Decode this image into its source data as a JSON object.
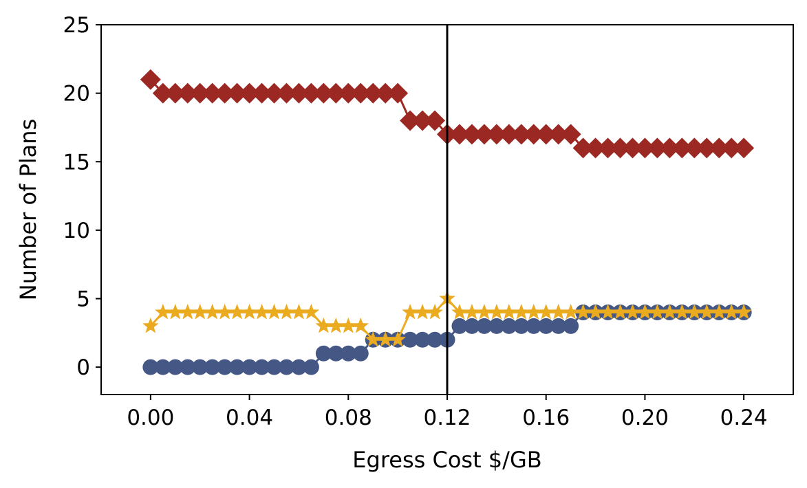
{
  "chart_data": {
    "type": "line",
    "xlabel": "Egress Cost $/GB",
    "ylabel": "Number of Plans",
    "xlim": [
      -0.02,
      0.26
    ],
    "ylim": [
      -2,
      25
    ],
    "xticks": [
      0.0,
      0.04,
      0.08,
      0.12,
      0.16,
      0.2,
      0.24
    ],
    "xtick_labels": [
      "0.00",
      "0.04",
      "0.08",
      "0.12",
      "0.16",
      "0.20",
      "0.24"
    ],
    "yticks": [
      0,
      5,
      10,
      15,
      20,
      25
    ],
    "ytick_labels": [
      "0",
      "5",
      "10",
      "15",
      "20",
      "25"
    ],
    "grid": false,
    "legend": "none",
    "vline_x": 0.12,
    "x": [
      0.0,
      0.005,
      0.01,
      0.015,
      0.02,
      0.025,
      0.03,
      0.035,
      0.04,
      0.045,
      0.05,
      0.055,
      0.06,
      0.065,
      0.07,
      0.075,
      0.08,
      0.085,
      0.09,
      0.095,
      0.1,
      0.105,
      0.11,
      0.115,
      0.12,
      0.125,
      0.13,
      0.135,
      0.14,
      0.145,
      0.15,
      0.155,
      0.16,
      0.165,
      0.17,
      0.175,
      0.18,
      0.185,
      0.19,
      0.195,
      0.2,
      0.205,
      0.21,
      0.215,
      0.22,
      0.225,
      0.23,
      0.235,
      0.24
    ],
    "series": [
      {
        "marker": "diamond",
        "color": "#9b2823",
        "values": [
          21,
          20,
          20,
          20,
          20,
          20,
          20,
          20,
          20,
          20,
          20,
          20,
          20,
          20,
          20,
          20,
          20,
          20,
          20,
          20,
          20,
          18,
          18,
          18,
          17,
          17,
          17,
          17,
          17,
          17,
          17,
          17,
          17,
          17,
          17,
          16,
          16,
          16,
          16,
          16,
          16,
          16,
          16,
          16,
          16,
          16,
          16,
          16,
          16
        ]
      },
      {
        "marker": "circle",
        "color": "#455885",
        "values": [
          0,
          0,
          0,
          0,
          0,
          0,
          0,
          0,
          0,
          0,
          0,
          0,
          0,
          0,
          1,
          1,
          1,
          1,
          2,
          2,
          2,
          2,
          2,
          2,
          2,
          3,
          3,
          3,
          3,
          3,
          3,
          3,
          3,
          3,
          3,
          4,
          4,
          4,
          4,
          4,
          4,
          4,
          4,
          4,
          4,
          4,
          4,
          4,
          4
        ]
      },
      {
        "marker": "star",
        "color": "#ebab21",
        "values": [
          3,
          4,
          4,
          4,
          4,
          4,
          4,
          4,
          4,
          4,
          4,
          4,
          4,
          4,
          3,
          3,
          3,
          3,
          2,
          2,
          2,
          4,
          4,
          4,
          5,
          4,
          4,
          4,
          4,
          4,
          4,
          4,
          4,
          4,
          4,
          4,
          4,
          4,
          4,
          4,
          4,
          4,
          4,
          4,
          4,
          4,
          4,
          4,
          4
        ]
      }
    ]
  }
}
